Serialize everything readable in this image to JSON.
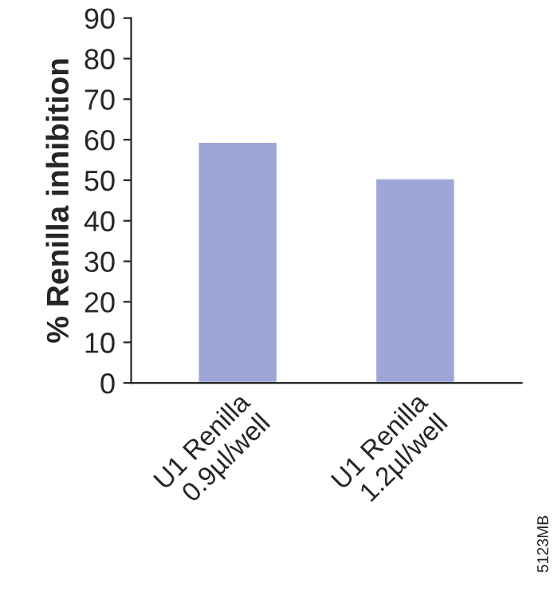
{
  "chart_data": {
    "type": "bar",
    "ylabel": "% Renilla inhibition",
    "categories": [
      "U1 Renilla\n0.9µl/well",
      "U1 Renilla\n1.2µl/well"
    ],
    "values": [
      59.5,
      50.5
    ],
    "color": "#9da6d6",
    "ylim": [
      0,
      90
    ],
    "yticks": [
      0,
      10,
      20,
      30,
      40,
      50,
      60,
      70,
      80,
      90
    ],
    "grid": false,
    "annotations": [
      "5123MB"
    ]
  }
}
